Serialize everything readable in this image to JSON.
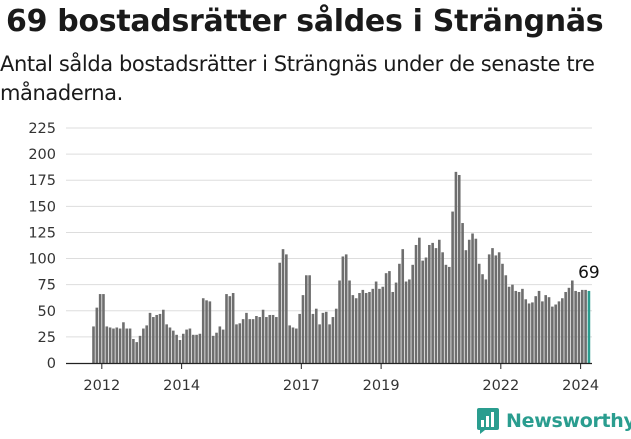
{
  "title": "69 bostadsrätter såldes i Strängnäs",
  "subtitle": "Antal sålda bostadsrätter i Strängnäs under de senaste tre månaderna.",
  "logo_text": "Newsworthy",
  "colors": {
    "bar": "#6e6e6e",
    "highlight": "#2a9d8f",
    "grid": "#dddddd"
  },
  "chart_data": {
    "type": "bar",
    "ylim": [
      0,
      225
    ],
    "yticks": [
      0,
      25,
      50,
      75,
      100,
      125,
      150,
      175,
      200,
      225
    ],
    "xticks": [
      "2012",
      "2014",
      "2017",
      "2019",
      "2022",
      "2024"
    ],
    "annotation": "69",
    "highlight_last": true,
    "grid": true,
    "start": "2011-10",
    "values": [
      35,
      53,
      66,
      66,
      35,
      34,
      33,
      34,
      33,
      39,
      33,
      33,
      23,
      20,
      26,
      33,
      36,
      48,
      44,
      46,
      47,
      51,
      37,
      34,
      31,
      27,
      22,
      28,
      32,
      33,
      27,
      27,
      28,
      62,
      60,
      59,
      26,
      29,
      35,
      32,
      66,
      64,
      67,
      37,
      38,
      42,
      48,
      42,
      42,
      45,
      44,
      51,
      44,
      46,
      46,
      44,
      96,
      109,
      104,
      36,
      34,
      33,
      47,
      65,
      84,
      84,
      47,
      52,
      37,
      48,
      49,
      37,
      44,
      52,
      79,
      102,
      104,
      79,
      65,
      62,
      67,
      70,
      67,
      68,
      71,
      78,
      71,
      73,
      86,
      88,
      68,
      77,
      95,
      109,
      78,
      80,
      94,
      113,
      120,
      98,
      101,
      113,
      115,
      110,
      118,
      106,
      94,
      92,
      145,
      183,
      180,
      134,
      108,
      118,
      124,
      119,
      95,
      85,
      80,
      104,
      110,
      103,
      106,
      95,
      84,
      73,
      75,
      69,
      68,
      71,
      61,
      57,
      58,
      64,
      69,
      59,
      65,
      63,
      54,
      56,
      59,
      62,
      68,
      72,
      79,
      69,
      68,
      70,
      70,
      69
    ]
  }
}
